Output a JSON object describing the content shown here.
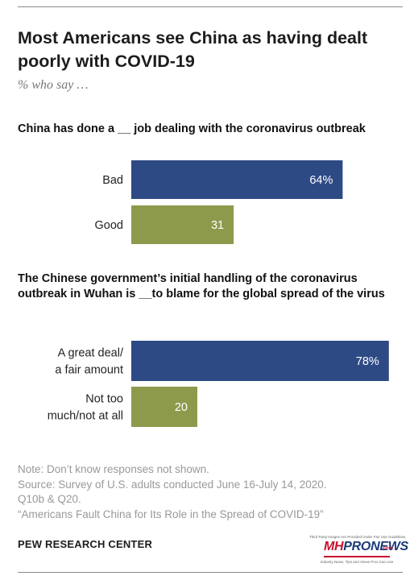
{
  "title": "Most Americans see China as having dealt poorly with COVID-19",
  "subtitle": "% who say …",
  "chart_data": [
    {
      "type": "bar",
      "orientation": "horizontal",
      "title": "China has done a __ job dealing with the coronavirus outbreak",
      "categories": [
        "Bad",
        "Good"
      ],
      "category_lines": [
        [
          "Bad"
        ],
        [
          "Good"
        ]
      ],
      "values": [
        64,
        31
      ],
      "value_labels": [
        "64%",
        "31"
      ],
      "colors": [
        "#2e4a85",
        "#8d9a4c"
      ],
      "xlim": [
        0,
        100
      ],
      "grid": false
    },
    {
      "type": "bar",
      "orientation": "horizontal",
      "title": "The Chinese government’s initial handling of the coronavirus outbreak in Wuhan is __to blame for the global spread of the virus",
      "categories": [
        "A great deal/ a fair amount",
        "Not too much/not at all"
      ],
      "category_lines": [
        [
          "A great deal/",
          "a fair amount"
        ],
        [
          "Not too",
          "much/not at all"
        ]
      ],
      "values": [
        78,
        20
      ],
      "value_labels": [
        "78%",
        "20"
      ],
      "colors": [
        "#2e4a85",
        "#8d9a4c"
      ],
      "xlim": [
        0,
        100
      ],
      "grid": false
    }
  ],
  "notes": [
    "Note: Don’t know responses not shown.",
    "Source: Survey of U.S. adults conducted June 16-July 14, 2020.",
    "Q10b & Q20.",
    "“Americans Fault China for Its Role in the Spread of COVID-19”"
  ],
  "source_org": "PEW RESEARCH CENTER",
  "watermark": {
    "fine_print": "Third Party Images Are Provided Under Fair Use Guidelines.",
    "brand": "MHPRONEWS",
    "brand_prefix": "MH",
    "brand_suffix": "PRONEWS",
    "domain": ".com",
    "tagline": "Industry News, Tips and Views Pros Can Use"
  }
}
